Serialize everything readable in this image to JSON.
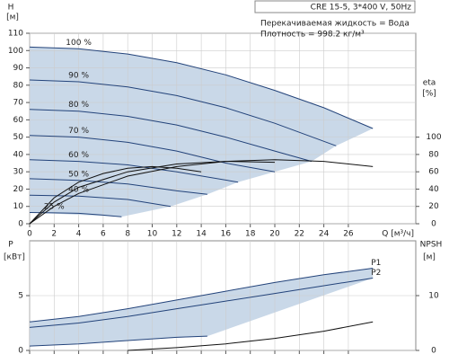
{
  "chart_data": [
    {
      "type": "line",
      "title": "CRE 15-5, 3*400 V, 50Hz",
      "annotations": [
        "Перекачиваемая жидкость = Вода",
        "Плотность = 998.2 кг/м³"
      ],
      "ylabel": "H",
      "yunit": "[м]",
      "y2label": "eta",
      "y2unit": "[%]",
      "xlabel": "Q [м³/ч]",
      "xlim": [
        0,
        31.5
      ],
      "xticks": [
        0,
        2,
        4,
        6,
        8,
        10,
        12,
        14,
        16,
        18,
        20,
        22,
        24,
        26
      ],
      "ylim": [
        0,
        110
      ],
      "yticks": [
        0,
        10,
        20,
        30,
        40,
        50,
        60,
        70,
        80,
        90,
        100,
        110
      ],
      "y2lim": [
        0,
        220
      ],
      "y2ticks": [
        0,
        20,
        40,
        60,
        80,
        100
      ],
      "grid": true,
      "shade": "#c9d8e8",
      "series": [
        {
          "name": "100 %",
          "color": "#23437a",
          "x": [
            0,
            4,
            8,
            12,
            16,
            20,
            24,
            28
          ],
          "values": [
            102,
            101,
            98,
            93,
            86,
            77,
            67,
            55
          ]
        },
        {
          "name": "90 %",
          "color": "#23437a",
          "x": [
            0,
            4,
            8,
            12,
            16,
            20,
            25
          ],
          "values": [
            83,
            82,
            79,
            74,
            67,
            58,
            45
          ]
        },
        {
          "name": "80 %",
          "color": "#23437a",
          "x": [
            0,
            4,
            8,
            12,
            16,
            20,
            23
          ],
          "values": [
            66,
            65,
            62,
            57,
            50,
            42,
            36
          ]
        },
        {
          "name": "70 %",
          "color": "#23437a",
          "x": [
            0,
            4,
            8,
            12,
            16,
            20
          ],
          "values": [
            51,
            50,
            47,
            42,
            35,
            30
          ]
        },
        {
          "name": "60 %",
          "color": "#23437a",
          "x": [
            0,
            4,
            8,
            12,
            17
          ],
          "values": [
            37,
            36,
            34,
            30,
            24
          ]
        },
        {
          "name": "50 %",
          "color": "#23437a",
          "x": [
            0,
            4,
            8,
            12,
            14.5
          ],
          "values": [
            26,
            25,
            23,
            19,
            17
          ]
        },
        {
          "name": "40 %",
          "color": "#23437a",
          "x": [
            0,
            4,
            8,
            11.5
          ],
          "values": [
            16.5,
            16,
            14,
            10
          ]
        },
        {
          "name": "25 %",
          "color": "#23437a",
          "x": [
            0,
            2,
            4,
            6,
            7.5
          ],
          "values": [
            6.5,
            6.3,
            6,
            5,
            4
          ]
        },
        {
          "color": "#111111",
          "axis": "y2",
          "x": [
            0,
            2,
            4,
            8,
            12,
            16,
            20,
            24,
            28
          ],
          "values": [
            0,
            20,
            35,
            55,
            66,
            72,
            74,
            72,
            66
          ]
        },
        {
          "color": "#111111",
          "axis": "y2",
          "x": [
            0,
            2,
            4,
            8,
            12,
            16,
            20
          ],
          "values": [
            0,
            25,
            42,
            60,
            69,
            72,
            71
          ]
        },
        {
          "color": "#111111",
          "axis": "y2",
          "x": [
            0,
            2,
            4,
            6,
            8,
            10,
            12,
            14
          ],
          "values": [
            0,
            30,
            48,
            58,
            64,
            66,
            64,
            60
          ]
        }
      ]
    },
    {
      "type": "line",
      "ylabel": "P",
      "yunit": "[кВт]",
      "y2label": "NPSH",
      "y2unit": "[м]",
      "xlim": [
        0,
        31.5
      ],
      "xticks": [
        0,
        2,
        4,
        6,
        8,
        10,
        12,
        14,
        16,
        18,
        20,
        22,
        24,
        26
      ],
      "ylim": [
        0,
        10
      ],
      "yticks": [
        0,
        5
      ],
      "y2lim": [
        0,
        20
      ],
      "y2ticks": [
        0,
        10
      ],
      "grid": true,
      "shade": "#c9d8e8",
      "series": [
        {
          "name": "P1",
          "color": "#23437a",
          "x": [
            0,
            4,
            8,
            12,
            16,
            20,
            24,
            28
          ],
          "values": [
            2.6,
            3.1,
            3.8,
            4.6,
            5.4,
            6.2,
            6.9,
            7.5
          ]
        },
        {
          "name": "P2",
          "color": "#23437a",
          "x": [
            0,
            4,
            8,
            12,
            16,
            20,
            24,
            28
          ],
          "values": [
            2.1,
            2.5,
            3.1,
            3.8,
            4.5,
            5.2,
            5.9,
            6.6
          ]
        },
        {
          "color": "#23437a",
          "x": [
            0,
            4,
            8,
            12,
            14.5
          ],
          "values": [
            0.4,
            0.6,
            0.9,
            1.2,
            1.3
          ]
        },
        {
          "color": "#111111",
          "axis": "y2",
          "x": [
            8,
            12,
            16,
            20,
            24,
            28
          ],
          "values": [
            0,
            0.5,
            1.2,
            2.2,
            3.5,
            5.2
          ]
        }
      ]
    }
  ]
}
